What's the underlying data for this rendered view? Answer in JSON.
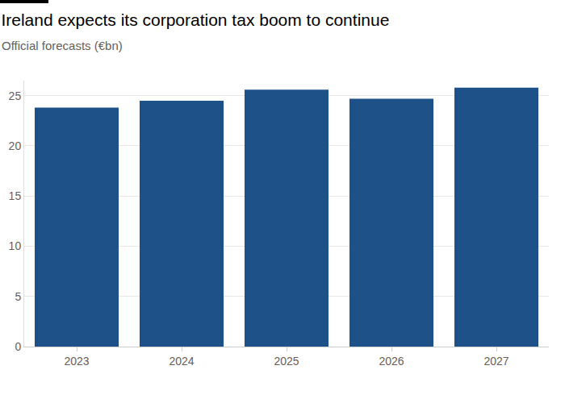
{
  "chart_data": {
    "type": "bar",
    "title": "Ireland expects its corporation tax boom to continue",
    "subtitle": "Official forecasts (€bn)",
    "categories": [
      "2023",
      "2024",
      "2025",
      "2026",
      "2027"
    ],
    "values": [
      23.8,
      24.5,
      25.6,
      24.7,
      25.8
    ],
    "color": "#1f5189",
    "ylim": [
      0,
      26.5
    ],
    "yticks": [
      0,
      5,
      10,
      15,
      20,
      25
    ],
    "grid": true
  }
}
